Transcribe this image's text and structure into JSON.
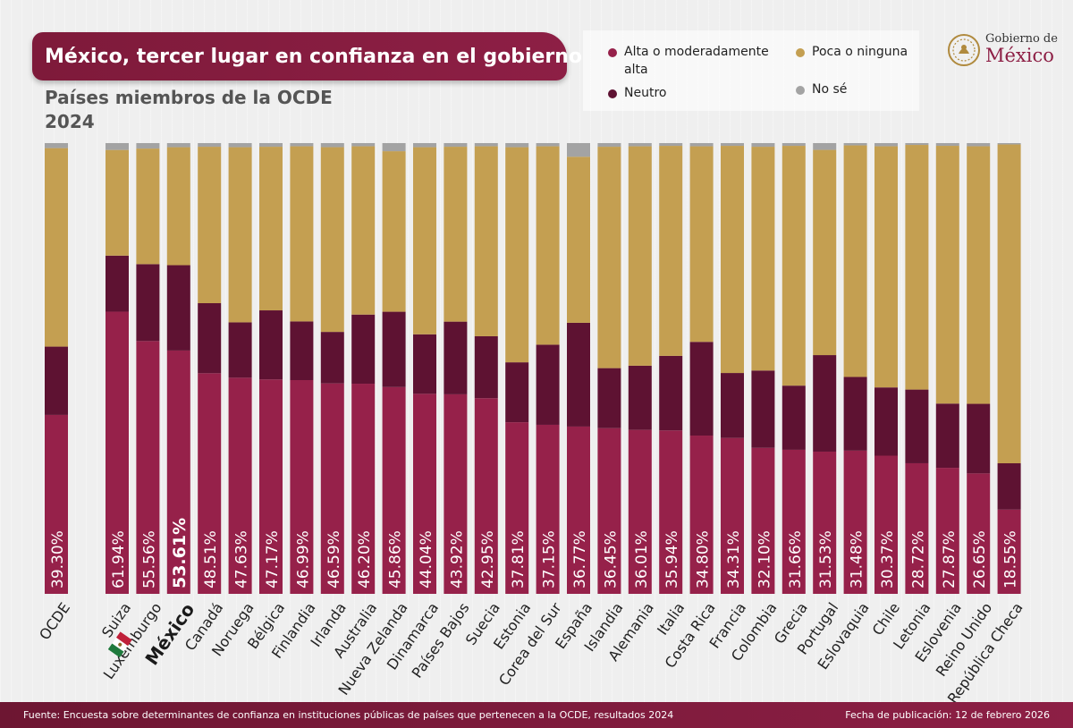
{
  "title": "México, tercer lugar en confianza en el gobierno",
  "subtitle_line1": "Países miembros de la OCDE",
  "subtitle_line2": "2024",
  "logo": {
    "line1": "Gobierno de",
    "line2": "México"
  },
  "legend": {
    "alta": "Alta o moderadamente alta",
    "poca": "Poca o ninguna",
    "neutro": "Neutro",
    "nose": "No sé"
  },
  "colors": {
    "alta": "#96214a",
    "neutro": "#5e1232",
    "poca": "#c49f51",
    "nose": "#a3a3a3",
    "highlight_label": "#1a1a1a"
  },
  "highlight": "México",
  "chart_data": {
    "type": "bar",
    "stacked": true,
    "ylim": [
      0,
      100
    ],
    "categories": [
      "OCDE",
      "Suiza",
      "Luxemburgo",
      "México",
      "Canadá",
      "Noruega",
      "Bélgica",
      "Finlandia",
      "Irlanda",
      "Australia",
      "Nueva Zelanda",
      "Dinamarca",
      "Países Bajos",
      "Suecia",
      "Estonia",
      "Corea del Sur",
      "España",
      "Islandia",
      "Alemania",
      "Italia",
      "Costa Rica",
      "Francia",
      "Colombia",
      "Grecia",
      "Portugal",
      "Eslovaquia",
      "Chile",
      "Letonia",
      "Eslovenia",
      "Reino Unido",
      "República Checa"
    ],
    "value_labels": [
      "39.30%",
      "61.94%",
      "55.56%",
      "53.61%",
      "48.51%",
      "47.63%",
      "47.17%",
      "46.99%",
      "46.59%",
      "46.20%",
      "45.86%",
      "44.04%",
      "43.92%",
      "42.95%",
      "37.81%",
      "37.15%",
      "36.77%",
      "36.45%",
      "36.01%",
      "35.94%",
      "34.80%",
      "34.31%",
      "32.10%",
      "31.66%",
      "31.53%",
      "31.48%",
      "30.37%",
      "28.72%",
      "27.87%",
      "26.65%",
      "18.55%"
    ],
    "series": [
      {
        "name": "Alta o moderadamente alta",
        "values": [
          39.3,
          61.94,
          55.56,
          53.61,
          48.51,
          47.63,
          47.17,
          46.99,
          46.59,
          46.2,
          45.86,
          44.04,
          43.92,
          42.95,
          37.81,
          37.15,
          36.77,
          36.45,
          36.01,
          35.94,
          34.8,
          34.31,
          32.1,
          31.66,
          31.53,
          31.48,
          30.37,
          28.72,
          27.87,
          26.65,
          18.55
        ]
      },
      {
        "name": "Neutro",
        "values": [
          15.0,
          12.3,
          16.9,
          18.8,
          15.4,
          12.2,
          15.2,
          12.9,
          11.4,
          15.2,
          16.7,
          13.1,
          16.0,
          13.6,
          13.2,
          17.6,
          22.8,
          13.2,
          14.1,
          16.4,
          20.6,
          14.3,
          17.0,
          14.1,
          21.4,
          16.2,
          15.0,
          16.2,
          14.2,
          15.4,
          10.2
        ]
      },
      {
        "name": "Poca o ninguna",
        "values": [
          43.6,
          23.2,
          25.4,
          26.0,
          34.4,
          38.6,
          36.0,
          38.5,
          40.9,
          37.0,
          35.6,
          41.2,
          38.5,
          41.7,
          47.4,
          43.6,
          36.5,
          48.7,
          48.2,
          46.2,
          43.0,
          50.0,
          49.2,
          52.7,
          45.5,
          50.9,
          53.0,
          53.8,
          57.0,
          57.0,
          70.2
        ]
      },
      {
        "name": "No sé",
        "values": [
          1.1,
          1.5,
          1.2,
          0.9,
          0.8,
          0.9,
          0.8,
          0.7,
          0.9,
          0.7,
          1.8,
          0.9,
          0.8,
          0.7,
          0.9,
          0.7,
          3.0,
          0.8,
          0.7,
          0.6,
          0.7,
          0.6,
          0.8,
          0.6,
          1.5,
          0.5,
          0.7,
          0.4,
          0.6,
          0.7,
          0.3
        ]
      }
    ]
  },
  "footer": {
    "source": "Fuente: Encuesta sobre determinantes de confianza en instituciones públicas de países que pertenecen a la OCDE, resultados 2024",
    "date": "Fecha de publicación: 12 de febrero 2026"
  }
}
